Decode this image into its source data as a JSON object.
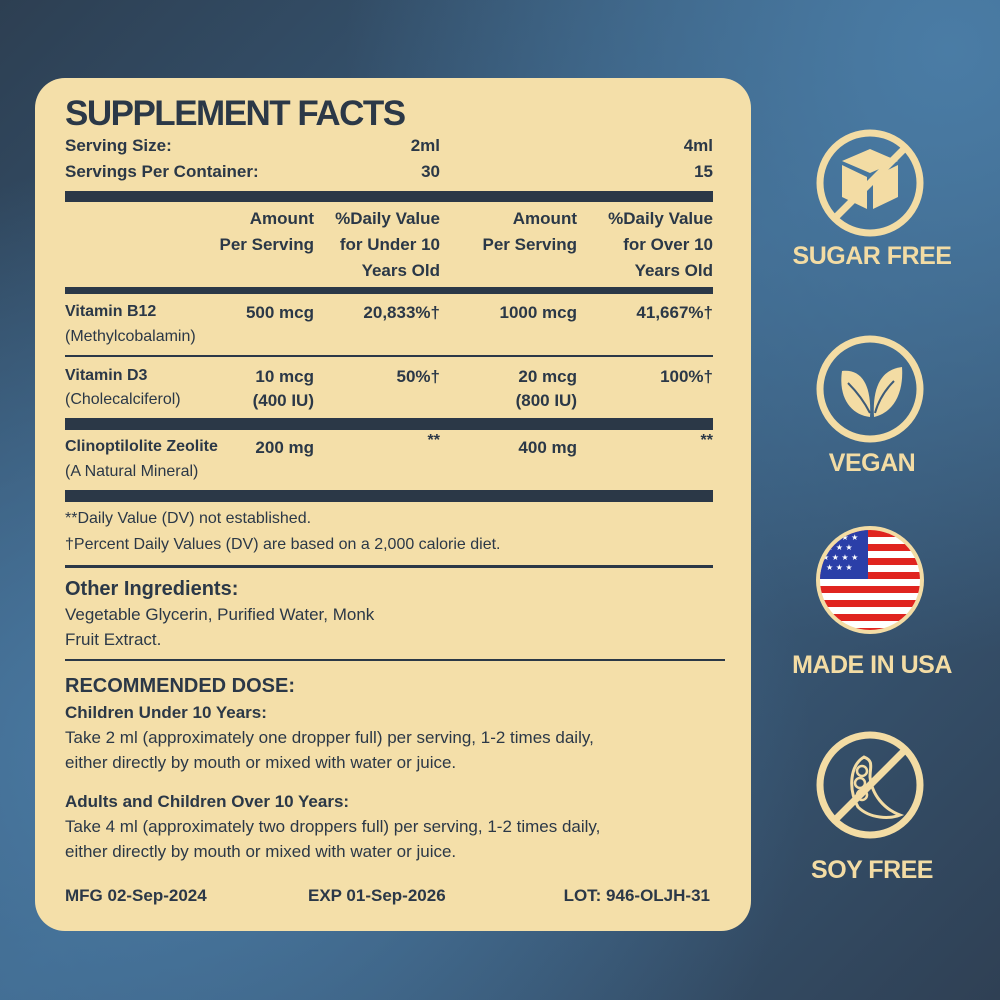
{
  "title": "SUPPLEMENT FACTS",
  "serving": {
    "size_label": "Serving Size:",
    "size_child": "2ml",
    "size_adult": "4ml",
    "per_container_label": "Servings Per Container:",
    "per_container_child": "30",
    "per_container_adult": "15"
  },
  "headers": {
    "amount_child": [
      "Amount",
      "Per Serving"
    ],
    "dv_child": [
      "%Daily Value",
      "for Under 10",
      "Years Old"
    ],
    "amount_adult": [
      "Amount",
      "Per Serving"
    ],
    "dv_adult": [
      "%Daily Value",
      "for Over 10",
      "Years Old"
    ]
  },
  "nutrients": [
    {
      "name": "Vitamin B12",
      "sub": "(Methylcobalamin)",
      "amount_child": "500 mcg",
      "amount_child_sub": "",
      "dv_child": "20,833%†",
      "amount_adult": "1000 mcg",
      "amount_adult_sub": "",
      "dv_adult": "41,667%†"
    },
    {
      "name": "Vitamin D3",
      "sub": "(Cholecalciferol)",
      "amount_child": "10 mcg",
      "amount_child_sub": "(400 IU)",
      "dv_child": "50%†",
      "amount_adult": "20 mcg",
      "amount_adult_sub": "(800 IU)",
      "dv_adult": "100%†"
    },
    {
      "name": "Clinoptilolite Zeolite",
      "sub": "(A Natural Mineral)",
      "amount_child": "200 mg",
      "amount_child_sub": "",
      "dv_child": "**",
      "amount_adult": "400 mg",
      "amount_adult_sub": "",
      "dv_adult": "**"
    }
  ],
  "footnotes": [
    "**Daily Value (DV) not established.",
    "†Percent Daily Values (DV) are based on a 2,000 calorie diet."
  ],
  "other_ingredients": {
    "heading": "Other Ingredients:",
    "lines": [
      "Vegetable Glycerin, Purified Water, Monk",
      "Fruit Extract."
    ]
  },
  "dose": {
    "heading": "RECOMMENDED DOSE:",
    "children_heading": "Children Under 10 Years:",
    "children_lines": [
      "Take 2 ml (approximately one dropper full) per serving, 1-2 times daily,",
      "either directly by mouth or mixed with water or juice."
    ],
    "adults_heading": "Adults and Children Over 10 Years:",
    "adults_lines": [
      "Take 4 ml (approximately two droppers full) per serving, 1-2 times daily,",
      "either directly by mouth or mixed with water or juice."
    ]
  },
  "footer": {
    "mfg": "MFG 02-Sep-2024",
    "exp": "EXP 01-Sep-2026",
    "lot": "LOT: 946-OLJH-31"
  },
  "badges": [
    {
      "label": "SUGAR FREE",
      "icon": "sugar-cube-crossed-icon"
    },
    {
      "label": "VEGAN",
      "icon": "leaves-icon"
    },
    {
      "label": "MADE IN USA",
      "icon": "us-flag-icon"
    },
    {
      "label": "SOY FREE",
      "icon": "soybean-crossed-icon"
    }
  ],
  "colors": {
    "label_bg": "#f4dfa9",
    "text": "#2b3847",
    "badge": "#f3dca4"
  }
}
